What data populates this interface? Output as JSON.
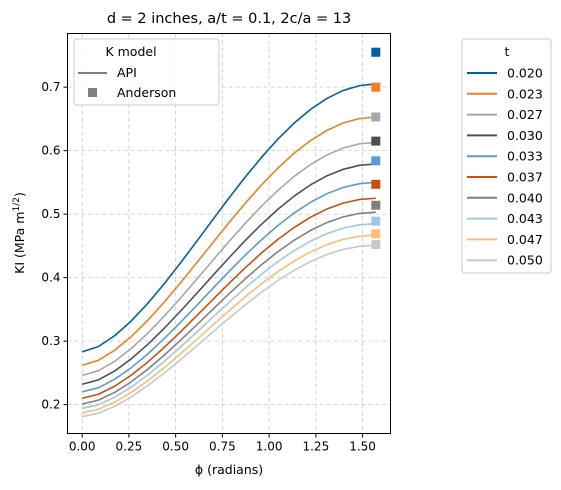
{
  "chart_data": {
    "type": "line",
    "title": "d = 2 inches, a/t = 0.1, 2c/a = 13",
    "xlabel": "ϕ (radians)",
    "ylabel": {
      "main": "KI (MPa m",
      "superscript": "1/2",
      "close": ")"
    },
    "xlim": [
      -0.0785,
      1.6493
    ],
    "ylim": [
      0.1545,
      0.7845
    ],
    "xticks": [
      0.0,
      0.25,
      0.5,
      0.75,
      1.0,
      1.25,
      1.5
    ],
    "xtick_labels": [
      "0.00",
      "0.25",
      "0.50",
      "0.75",
      "1.00",
      "1.25",
      "1.50"
    ],
    "yticks": [
      0.2,
      0.3,
      0.4,
      0.5,
      0.6,
      0.7
    ],
    "ytick_labels": [
      "0.2",
      "0.3",
      "0.4",
      "0.5",
      "0.6",
      "0.7"
    ],
    "grid": true,
    "model_legend": {
      "title": "K model",
      "placement": "top-left",
      "entries": [
        {
          "label": "API",
          "marker": "line",
          "color": "#808080"
        },
        {
          "label": "Anderson",
          "marker": "square",
          "color": "#808080"
        }
      ]
    },
    "thickness_legend": {
      "title": "t",
      "placement": "outside-right"
    },
    "x_points": [
      0.0,
      0.0873,
      0.1745,
      0.2618,
      0.3491,
      0.4363,
      0.5236,
      0.6109,
      0.6981,
      0.7854,
      0.8727,
      0.9599,
      1.0472,
      1.1345,
      1.2217,
      1.309,
      1.3963,
      1.4835,
      1.5708
    ],
    "anderson_x": 1.5708,
    "series": [
      {
        "name": "0.020",
        "color": "#0060a0",
        "phi0": 0.283,
        "end": 0.705,
        "anderson": 0.755
      },
      {
        "name": "0.023",
        "color": "#f08020",
        "phi0": 0.262,
        "end": 0.653,
        "anderson": 0.7
      },
      {
        "name": "0.027",
        "color": "#a8a8a8",
        "phi0": 0.246,
        "end": 0.613,
        "anderson": 0.653
      },
      {
        "name": "0.030",
        "color": "#505050",
        "phi0": 0.232,
        "end": 0.579,
        "anderson": 0.615
      },
      {
        "name": "0.033",
        "color": "#5a9ad2",
        "phi0": 0.22,
        "end": 0.55,
        "anderson": 0.584
      },
      {
        "name": "0.037",
        "color": "#c85010",
        "phi0": 0.21,
        "end": 0.525,
        "anderson": 0.547
      },
      {
        "name": "0.040",
        "color": "#808080",
        "phi0": 0.201,
        "end": 0.503,
        "anderson": 0.514
      },
      {
        "name": "0.043",
        "color": "#a0c8e8",
        "phi0": 0.194,
        "end": 0.485,
        "anderson": 0.489
      },
      {
        "name": "0.047",
        "color": "#ffbc78",
        "phi0": 0.187,
        "end": 0.467,
        "anderson": 0.469
      },
      {
        "name": "0.050",
        "color": "#c8c8c8",
        "phi0": 0.181,
        "end": 0.451,
        "anderson": 0.452
      }
    ]
  }
}
